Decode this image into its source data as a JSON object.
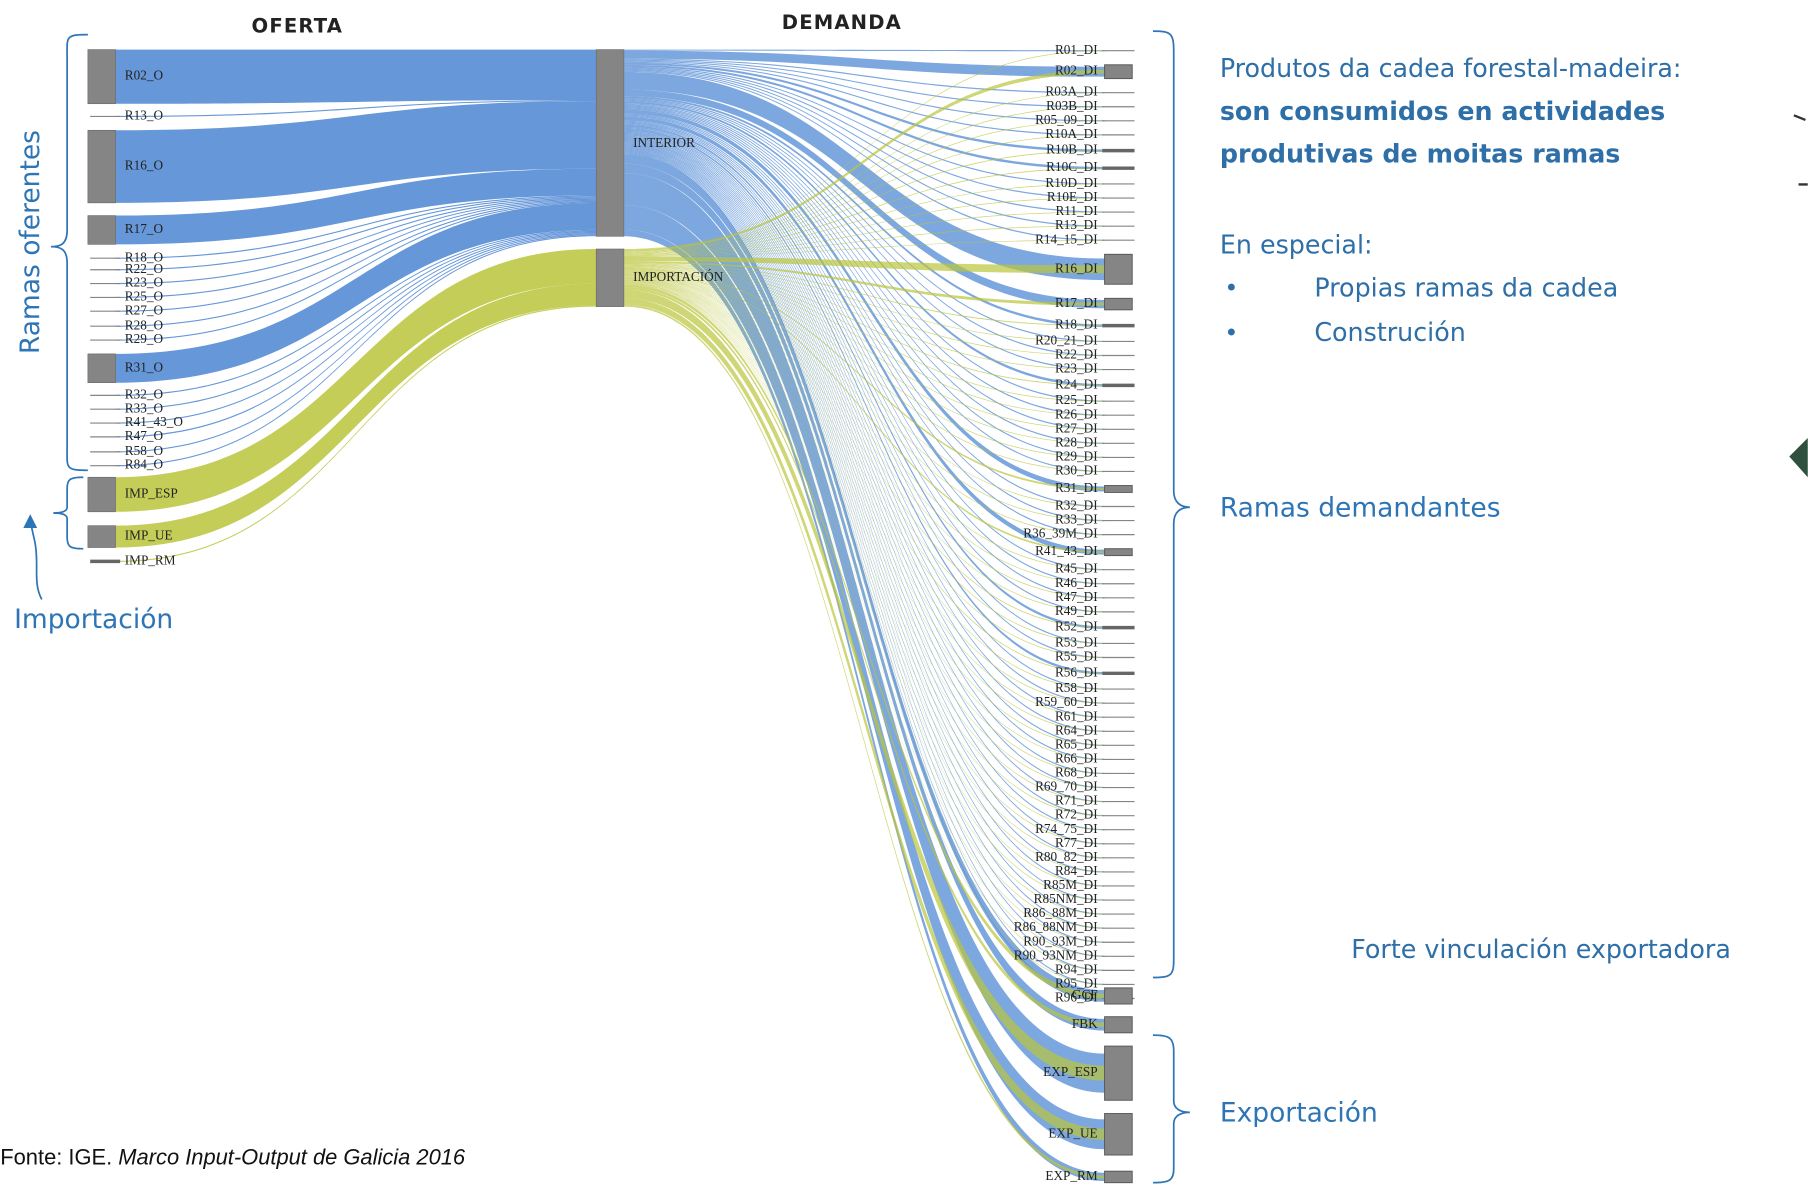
{
  "headers": {
    "supply": "OFERTA",
    "demand": "DEMANDA"
  },
  "supply_nodes": [
    "R02_O",
    "R13_O",
    "R16_O",
    "R17_O",
    "R18_O",
    "R22_O",
    "R23_O",
    "R25_O",
    "R27_O",
    "R28_O",
    "R29_O",
    "R31_O",
    "R32_O",
    "R33_O",
    "R41_43_O",
    "R47_O",
    "R58_O",
    "R84_O",
    "IMP_ESP",
    "IMP_UE",
    "IMP_RM"
  ],
  "middle_nodes": [
    "INTERIOR",
    "IMPORTACIÓN"
  ],
  "demand_nodes": [
    "R01_DI",
    "R02_DI",
    "R03A_DI",
    "R03B_DI",
    "R05_09_DI",
    "R10A_DI",
    "R10B_DI",
    "R10C_DI",
    "R10D_DI",
    "R10E_DI",
    "R11_DI",
    "R13_DI",
    "R14_15_DI",
    "R16_DI",
    "R17_DI",
    "R18_DI",
    "R20_21_DI",
    "R22_DI",
    "R23_DI",
    "R24_DI",
    "R25_DI",
    "R26_DI",
    "R27_DI",
    "R28_DI",
    "R29_DI",
    "R30_DI",
    "R31_DI",
    "R32_DI",
    "R33_DI",
    "R36_39M_DI",
    "R41_43_DI",
    "R45_DI",
    "R46_DI",
    "R47_DI",
    "R49_DI",
    "R52_DI",
    "R53_DI",
    "R55_DI",
    "R56_DI",
    "R58_DI",
    "R59_60_DI",
    "R61_DI",
    "R64_DI",
    "R65_DI",
    "R66_DI",
    "R68_DI",
    "R69_70_DI",
    "R71_DI",
    "R72_DI",
    "R74_75_DI",
    "R77_DI",
    "R80_82_DI",
    "R84_DI",
    "R85M_DI",
    "R85NM_DI",
    "R86_88M_DI",
    "R86_88NM_DI",
    "R90_93M_DI",
    "R90_93NM_DI",
    "R94_DI",
    "R95_DI",
    "R96_DI",
    "GCF",
    "FBK",
    "EXP_ESP",
    "EXP_UE",
    "EXP_RM"
  ],
  "annotations": {
    "supply_group": "Ramas oferentes",
    "import_group": "Importación",
    "demand_group": "Ramas demandantes",
    "export_group": "Exportación"
  },
  "notes": {
    "intro": "Produtos da cadea forestal-madeira:",
    "highlight": [
      "son consumidos en actividades",
      "produtivas de moitas ramas"
    ],
    "special": "En especial:",
    "bullets": [
      "Propias ramas da cadea",
      "Construción"
    ],
    "export": "Forte vinculación exportadora"
  },
  "source": {
    "prefix": "Fonte: IGE.",
    "title": "Marco Input-Output de Galicia 2016"
  }
}
